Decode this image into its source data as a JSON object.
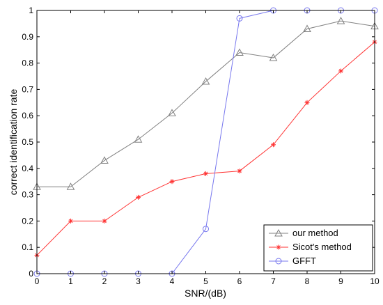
{
  "chart_data": {
    "type": "line",
    "title": "",
    "xlabel": "SNR/(dB)",
    "ylabel": "correct identification rate",
    "xlim": [
      0,
      10
    ],
    "ylim": [
      0,
      1
    ],
    "x": [
      0,
      1,
      2,
      3,
      4,
      5,
      6,
      7,
      8,
      9,
      10
    ],
    "xticks": [
      "0",
      "1",
      "2",
      "3",
      "4",
      "5",
      "6",
      "7",
      "8",
      "9",
      "10"
    ],
    "yticks": [
      "0",
      "0.1",
      "0.2",
      "0.3",
      "0.4",
      "0.5",
      "0.6",
      "0.7",
      "0.8",
      "0.9",
      "1"
    ],
    "grid": false,
    "legend_position": "bottom-right",
    "series": [
      {
        "name": "our method",
        "color": "#808080",
        "marker": "triangle",
        "values": [
          0.33,
          0.33,
          0.43,
          0.51,
          0.61,
          0.73,
          0.84,
          0.82,
          0.93,
          0.96,
          0.94
        ]
      },
      {
        "name": "Sicot's method",
        "color": "#ff3333",
        "marker": "asterisk",
        "values": [
          0.07,
          0.2,
          0.2,
          0.29,
          0.35,
          0.38,
          0.39,
          0.49,
          0.65,
          0.77,
          0.88
        ]
      },
      {
        "name": "GFFT",
        "color": "#7777ee",
        "marker": "circle",
        "values": [
          0,
          0,
          0,
          0,
          0,
          0.17,
          0.97,
          1.0,
          1.0,
          1.0,
          1.0
        ]
      }
    ]
  }
}
